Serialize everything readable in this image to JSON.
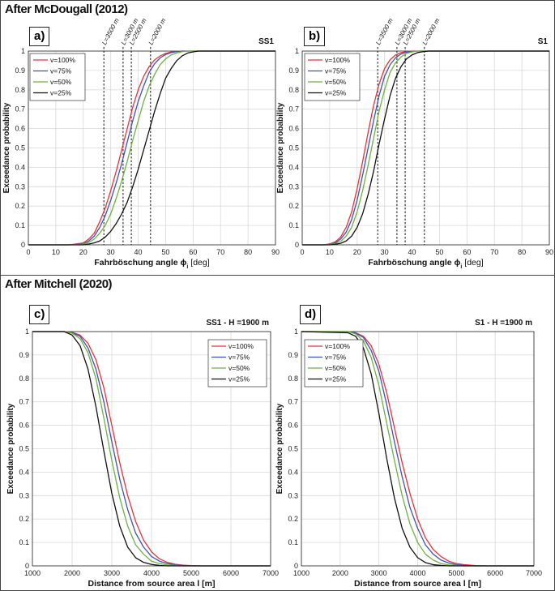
{
  "sections": {
    "top_title": "After McDougall (2012)",
    "bottom_title": "After Mitchell (2020)"
  },
  "colors": {
    "v100": "#e8323c",
    "v75": "#3f52b5",
    "v50": "#6cb33e",
    "v25": "#111111",
    "grid": "#d9d9d9"
  },
  "chart_data": [
    {
      "id": "a",
      "panel_label": "a)",
      "type": "line",
      "tag": "SS1",
      "title": "",
      "xlabel": "Fahrböschung angle ϕ",
      "xlabel_sub": "i",
      "xlabel_unit": " [deg]",
      "ylabel": "Exceedance probability",
      "xlim": [
        0,
        90
      ],
      "ylim": [
        0,
        1
      ],
      "xticks": [
        0,
        10,
        20,
        30,
        40,
        50,
        60,
        70,
        80,
        90
      ],
      "yticks": [
        0,
        0.1,
        0.2,
        0.3,
        0.4,
        0.5,
        0.6,
        0.7,
        0.8,
        0.9,
        1
      ],
      "x": [
        0,
        15,
        20,
        22,
        24,
        26,
        28,
        30,
        32,
        34,
        36,
        38,
        40,
        42,
        44,
        46,
        48,
        50,
        52,
        54,
        56,
        58,
        60,
        62,
        65,
        90
      ],
      "series": [
        {
          "name": "v=100%",
          "color_key": "v100",
          "values": [
            0,
            0,
            0.01,
            0.03,
            0.06,
            0.12,
            0.19,
            0.28,
            0.38,
            0.49,
            0.6,
            0.71,
            0.8,
            0.87,
            0.92,
            0.955,
            0.975,
            0.988,
            0.995,
            0.998,
            1,
            1,
            1,
            1,
            1,
            1
          ]
        },
        {
          "name": "v=75%",
          "color_key": "v75",
          "values": [
            0,
            0,
            0.005,
            0.02,
            0.045,
            0.09,
            0.15,
            0.23,
            0.32,
            0.42,
            0.53,
            0.64,
            0.74,
            0.82,
            0.89,
            0.935,
            0.965,
            0.982,
            0.992,
            0.997,
            1,
            1,
            1,
            1,
            1,
            1
          ]
        },
        {
          "name": "v=50%",
          "color_key": "v50",
          "values": [
            0,
            0,
            0.003,
            0.012,
            0.03,
            0.06,
            0.1,
            0.16,
            0.24,
            0.33,
            0.43,
            0.54,
            0.64,
            0.74,
            0.82,
            0.88,
            0.93,
            0.96,
            0.98,
            0.99,
            0.997,
            1,
            1,
            1,
            1,
            1
          ]
        },
        {
          "name": "v=25%",
          "color_key": "v25",
          "values": [
            0,
            0,
            0,
            0.004,
            0.01,
            0.02,
            0.04,
            0.07,
            0.11,
            0.16,
            0.22,
            0.3,
            0.39,
            0.49,
            0.59,
            0.69,
            0.78,
            0.86,
            0.91,
            0.95,
            0.975,
            0.99,
            0.996,
            1,
            1,
            1
          ]
        }
      ],
      "reference_lines": [
        {
          "label": "L=3500 m",
          "x": 27.5
        },
        {
          "label": "L=3000 m",
          "x": 34.5
        },
        {
          "label": "L=2500 m",
          "x": 37.5
        },
        {
          "label": "L=2000 m",
          "x": 44.5
        }
      ],
      "legend_position": "top-left"
    },
    {
      "id": "b",
      "panel_label": "b)",
      "type": "line",
      "tag": "S1",
      "title": "",
      "xlabel": "Fahrböschung angle ϕ",
      "xlabel_sub": "i",
      "xlabel_unit": " [deg]",
      "ylabel": "Exceedance probability",
      "xlim": [
        0,
        90
      ],
      "ylim": [
        0,
        1
      ],
      "xticks": [
        0,
        10,
        20,
        30,
        40,
        50,
        60,
        70,
        80,
        90
      ],
      "yticks": [
        0,
        0.1,
        0.2,
        0.3,
        0.4,
        0.5,
        0.6,
        0.7,
        0.8,
        0.9,
        1
      ],
      "x": [
        0,
        8,
        10,
        12,
        14,
        16,
        18,
        20,
        22,
        24,
        26,
        28,
        30,
        32,
        34,
        36,
        38,
        40,
        42,
        44,
        46,
        48,
        50,
        52,
        90
      ],
      "series": [
        {
          "name": "v=100%",
          "color_key": "v100",
          "values": [
            0,
            0,
            0.005,
            0.015,
            0.04,
            0.09,
            0.17,
            0.29,
            0.43,
            0.58,
            0.72,
            0.83,
            0.91,
            0.955,
            0.98,
            0.992,
            0.997,
            1,
            1,
            1,
            1,
            1,
            1,
            1,
            1
          ]
        },
        {
          "name": "v=75%",
          "color_key": "v75",
          "values": [
            0,
            0,
            0.003,
            0.01,
            0.03,
            0.065,
            0.13,
            0.23,
            0.36,
            0.5,
            0.64,
            0.77,
            0.87,
            0.93,
            0.965,
            0.985,
            0.994,
            0.998,
            1,
            1,
            1,
            1,
            1,
            1,
            1
          ]
        },
        {
          "name": "v=50%",
          "color_key": "v50",
          "values": [
            0,
            0,
            0.002,
            0.006,
            0.018,
            0.045,
            0.09,
            0.17,
            0.28,
            0.41,
            0.55,
            0.69,
            0.8,
            0.89,
            0.94,
            0.97,
            0.988,
            0.996,
            1,
            1,
            1,
            1,
            1,
            1,
            1
          ]
        },
        {
          "name": "v=25%",
          "color_key": "v25",
          "values": [
            0,
            0,
            0,
            0.003,
            0.008,
            0.02,
            0.045,
            0.09,
            0.16,
            0.26,
            0.38,
            0.52,
            0.65,
            0.77,
            0.86,
            0.92,
            0.96,
            0.98,
            0.992,
            0.997,
            1,
            1,
            1,
            1,
            1
          ]
        }
      ],
      "reference_lines": [
        {
          "label": "L=3500 m",
          "x": 27.5
        },
        {
          "label": "L=3000 m",
          "x": 34.5
        },
        {
          "label": "L=2500 m",
          "x": 37.5
        },
        {
          "label": "L=2000 m",
          "x": 44.5
        }
      ],
      "legend_position": "top-left"
    },
    {
      "id": "c",
      "panel_label": "c)",
      "type": "line",
      "tag": "SS1 - H =1900 m",
      "title": "",
      "xlabel": "Distance from source area l [m]",
      "xlabel_sub": "",
      "xlabel_unit": "",
      "ylabel": "Exceedance probability",
      "xlim": [
        1000,
        7000
      ],
      "ylim": [
        0,
        1
      ],
      "xticks": [
        1000,
        2000,
        3000,
        4000,
        5000,
        6000,
        7000
      ],
      "yticks": [
        0,
        0.1,
        0.2,
        0.3,
        0.4,
        0.5,
        0.6,
        0.7,
        0.8,
        0.9,
        1
      ],
      "x": [
        1000,
        1800,
        2000,
        2200,
        2400,
        2600,
        2800,
        3000,
        3200,
        3400,
        3600,
        3800,
        4000,
        4200,
        4400,
        4600,
        4800,
        5000,
        5300,
        7000
      ],
      "series": [
        {
          "name": "v=100%",
          "color_key": "v100",
          "values": [
            1,
            1,
            0.997,
            0.985,
            0.95,
            0.88,
            0.76,
            0.6,
            0.44,
            0.3,
            0.19,
            0.11,
            0.06,
            0.03,
            0.015,
            0.007,
            0.003,
            0.001,
            0,
            0
          ]
        },
        {
          "name": "v=75%",
          "color_key": "v75",
          "values": [
            1,
            1,
            0.995,
            0.98,
            0.93,
            0.84,
            0.7,
            0.53,
            0.37,
            0.24,
            0.14,
            0.08,
            0.04,
            0.02,
            0.01,
            0.004,
            0.002,
            0,
            0,
            0
          ]
        },
        {
          "name": "v=50%",
          "color_key": "v50",
          "values": [
            1,
            1,
            0.993,
            0.97,
            0.91,
            0.8,
            0.63,
            0.45,
            0.29,
            0.17,
            0.09,
            0.05,
            0.02,
            0.01,
            0.004,
            0.002,
            0,
            0,
            0,
            0
          ]
        },
        {
          "name": "v=25%",
          "color_key": "v25",
          "values": [
            1,
            1,
            0.985,
            0.94,
            0.84,
            0.68,
            0.49,
            0.31,
            0.17,
            0.08,
            0.035,
            0.015,
            0.006,
            0.002,
            0,
            0,
            0,
            0,
            0,
            0
          ]
        }
      ],
      "reference_lines": [],
      "legend_position": "top-right"
    },
    {
      "id": "d",
      "panel_label": "d)",
      "type": "line",
      "tag": "S1 - H =1900 m",
      "title": "",
      "xlabel": "Distance from source area l [m]",
      "xlabel_sub": "",
      "xlabel_unit": "",
      "ylabel": "Exceedance probability",
      "xlim": [
        1000,
        7000
      ],
      "ylim": [
        0,
        1
      ],
      "xticks": [
        1000,
        2000,
        3000,
        4000,
        5000,
        6000,
        7000
      ],
      "yticks": [
        0,
        0.1,
        0.2,
        0.3,
        0.4,
        0.5,
        0.6,
        0.7,
        0.8,
        0.9,
        1
      ],
      "x": [
        1000,
        2200,
        2400,
        2600,
        2800,
        3000,
        3200,
        3400,
        3600,
        3800,
        4000,
        4200,
        4400,
        4600,
        4800,
        5000,
        5200,
        5500,
        5800,
        7000
      ],
      "series": [
        {
          "name": "v=100%",
          "color_key": "v100",
          "values": [
            1,
            1,
            0.995,
            0.98,
            0.94,
            0.86,
            0.74,
            0.59,
            0.44,
            0.31,
            0.2,
            0.12,
            0.07,
            0.04,
            0.02,
            0.01,
            0.005,
            0.001,
            0,
            0
          ]
        },
        {
          "name": "v=75%",
          "color_key": "v75",
          "values": [
            1,
            1,
            0.993,
            0.975,
            0.92,
            0.83,
            0.69,
            0.53,
            0.38,
            0.25,
            0.16,
            0.09,
            0.05,
            0.025,
            0.012,
            0.005,
            0.002,
            0,
            0,
            0
          ]
        },
        {
          "name": "v=50%",
          "color_key": "v50",
          "values": [
            1,
            1,
            0.99,
            0.96,
            0.89,
            0.77,
            0.61,
            0.45,
            0.3,
            0.18,
            0.1,
            0.05,
            0.025,
            0.01,
            0.004,
            0.002,
            0,
            0,
            0,
            0
          ]
        },
        {
          "name": "v=25%",
          "color_key": "v25",
          "values": [
            1,
            0.995,
            0.98,
            0.93,
            0.82,
            0.65,
            0.46,
            0.29,
            0.16,
            0.08,
            0.035,
            0.014,
            0.005,
            0.002,
            0,
            0,
            0,
            0,
            0,
            0
          ]
        }
      ],
      "reference_lines": [],
      "legend_position": "top-right"
    }
  ]
}
